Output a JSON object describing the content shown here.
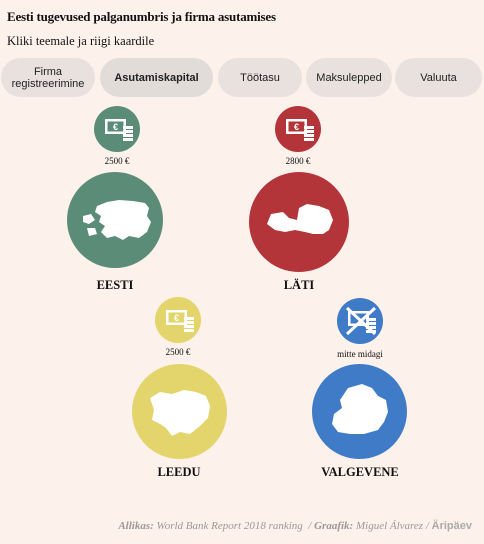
{
  "title": "Eesti tugevused palganumbris ja firma asutamises",
  "subtitle": "Kliki teemale ja riigi kaardile",
  "tabs": [
    {
      "label": "Firma registreerimine",
      "active": false
    },
    {
      "label": "Asutamiskapital",
      "active": true
    },
    {
      "label": "Töötasu",
      "active": false
    },
    {
      "label": "Maksulepped",
      "active": false
    },
    {
      "label": "Valuuta",
      "active": false
    }
  ],
  "countries": [
    {
      "name": "EESTI",
      "amount": "2500 €",
      "color": "#5a8c78",
      "icon": "money-icon"
    },
    {
      "name": "LÄTI",
      "amount": "2800 €",
      "color": "#b3353a",
      "icon": "money-icon"
    },
    {
      "name": "LEEDU",
      "amount": "2500 €",
      "color": "#e3d56b",
      "icon": "money-icon"
    },
    {
      "name": "VALGEVENE",
      "amount": "mitte midagi",
      "color": "#3f7bc6",
      "icon": "no-money-icon"
    }
  ],
  "footer": {
    "source_label": "Allikas:",
    "source_text": "World Bank Report 2018 ranking",
    "graphic_label": "Graafik:",
    "graphic_text": "Miguel Álvarez",
    "logo": "Äripäev"
  }
}
